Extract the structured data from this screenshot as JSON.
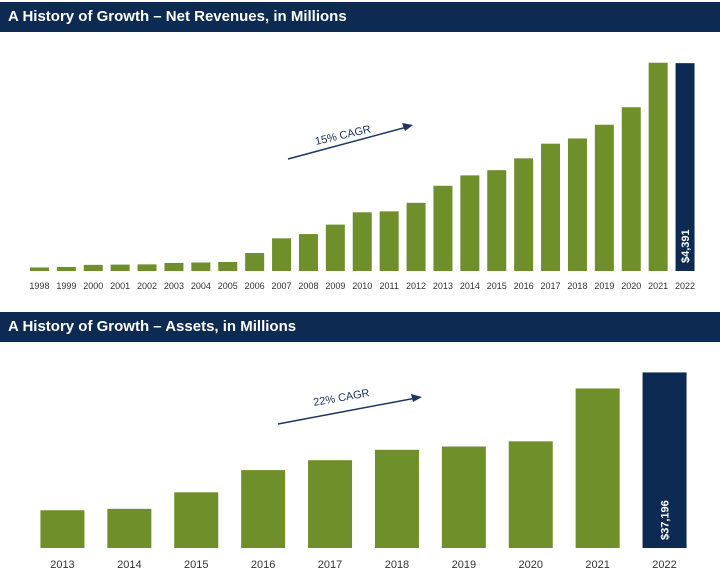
{
  "chart_data": [
    {
      "type": "bar",
      "title": "A History of Growth – Net Revenues, in Millions",
      "categories": [
        "1998",
        "1999",
        "2000",
        "2001",
        "2002",
        "2003",
        "2004",
        "2005",
        "2006",
        "2007",
        "2008",
        "2009",
        "2010",
        "2011",
        "2012",
        "2013",
        "2014",
        "2015",
        "2016",
        "2017",
        "2018",
        "2019",
        "2020",
        "2021",
        "2022"
      ],
      "values": [
        75,
        85,
        130,
        135,
        140,
        170,
        180,
        190,
        380,
        690,
        780,
        980,
        1240,
        1260,
        1440,
        1800,
        2020,
        2130,
        2380,
        2690,
        2800,
        3090,
        3460,
        4400,
        4391
      ],
      "highlight_label": "$4,391",
      "annotation": "15% CAGR",
      "ylim": [
        0,
        4500
      ],
      "colors": {
        "bar": "#6f8f2a",
        "highlight": "#0d2a52"
      }
    },
    {
      "type": "bar",
      "title": "A History of Growth – Assets, in Millions",
      "categories": [
        "2013",
        "2014",
        "2015",
        "2016",
        "2017",
        "2018",
        "2019",
        "2020",
        "2021",
        "2022"
      ],
      "values": [
        8000,
        8300,
        11800,
        16500,
        18600,
        20800,
        21500,
        22600,
        33800,
        37196
      ],
      "highlight_label": "$37,196",
      "annotation": "22% CAGR",
      "ylim": [
        0,
        37500
      ],
      "colors": {
        "bar": "#6f8f2a",
        "highlight": "#0d2a52"
      }
    }
  ]
}
